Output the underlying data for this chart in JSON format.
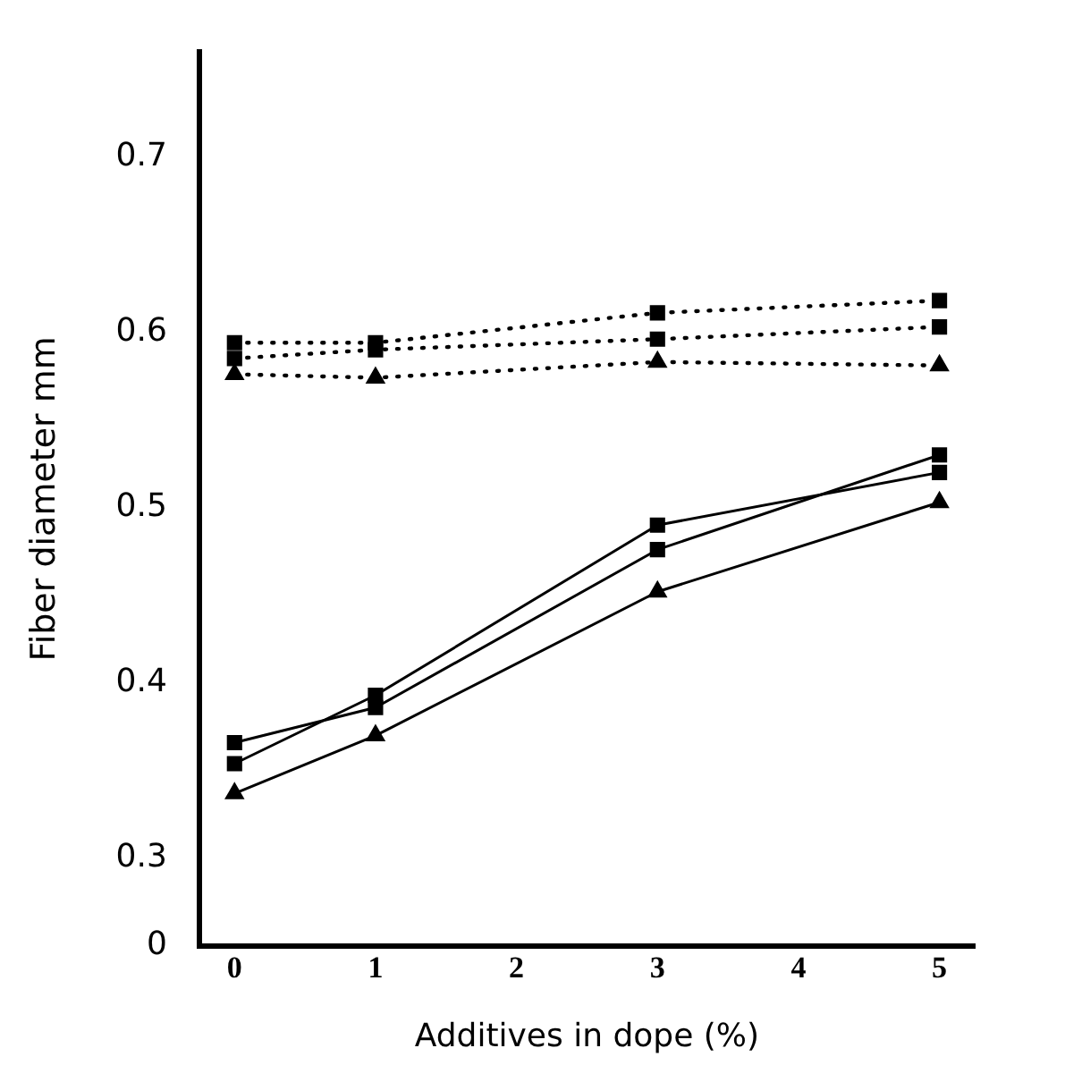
{
  "chart_data": {
    "type": "line",
    "xlabel": "Additives in dope (%)",
    "ylabel": "Fiber diameter mm",
    "xlim": [
      -0.25,
      5.25
    ],
    "xticks": [
      0,
      1,
      2,
      3,
      4,
      5
    ],
    "ylim": [
      0.25,
      0.76
    ],
    "yticks": [
      {
        "value": 0.25,
        "label": "0"
      },
      0.3,
      0.4,
      0.5,
      0.6,
      0.7
    ],
    "grid": false,
    "legend": false,
    "series": [
      {
        "color": "#000000",
        "marker": "square",
        "line_style": "dotted",
        "x": [
          0,
          1,
          3,
          5
        ],
        "values": [
          0.594,
          0.594,
          0.611,
          0.618
        ]
      },
      {
        "color": "#000000",
        "marker": "square",
        "line_style": "dotted",
        "x": [
          0,
          1,
          3,
          5
        ],
        "values": [
          0.585,
          0.59,
          0.596,
          0.603
        ]
      },
      {
        "color": "#000000",
        "marker": "triangle",
        "line_style": "dotted",
        "x": [
          0,
          1,
          3,
          5
        ],
        "values": [
          0.576,
          0.574,
          0.583,
          0.581
        ]
      },
      {
        "color": "#000000",
        "marker": "square",
        "line_style": "solid",
        "x": [
          0,
          1,
          3,
          5
        ],
        "values": [
          0.354,
          0.393,
          0.49,
          0.52
        ]
      },
      {
        "color": "#000000",
        "marker": "square",
        "line_style": "solid",
        "x": [
          0,
          1,
          3,
          5
        ],
        "values": [
          0.366,
          0.386,
          0.476,
          0.53
        ]
      },
      {
        "color": "#000000",
        "marker": "triangle",
        "line_style": "solid",
        "x": [
          0,
          1,
          3,
          5
        ],
        "values": [
          0.337,
          0.37,
          0.452,
          0.503
        ]
      }
    ]
  }
}
